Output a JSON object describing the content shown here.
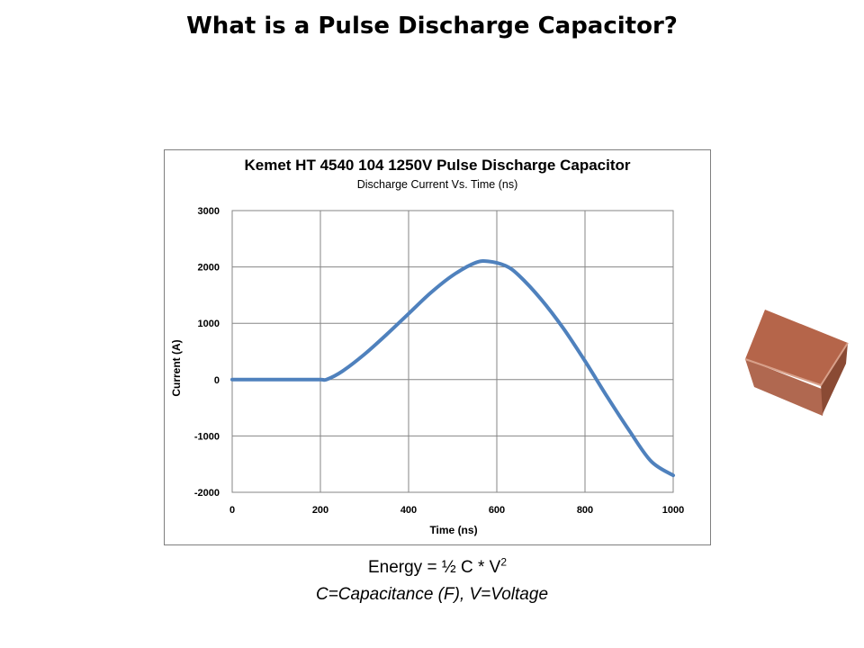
{
  "slide": {
    "title": "What is a Pulse Discharge Capacitor?",
    "formula_prefix": "Energy = ½ C * V",
    "formula_exponent": "2",
    "definitions": "C=Capacitance (F), V=Voltage"
  },
  "photo": {
    "icon": "capacitor-chip",
    "colors": {
      "top": "#b5654a",
      "front": "#b06850",
      "side": "#8a4a34"
    }
  },
  "chart_data": {
    "type": "line",
    "title": "Kemet HT 4540 104 1250V Pulse Discharge Capacitor",
    "subtitle": "Discharge Current Vs. Time (ns)",
    "xlabel": "Time (ns)",
    "ylabel": "Current (A)",
    "xlim": [
      0,
      1000
    ],
    "ylim": [
      -2000,
      3000
    ],
    "x_ticks": [
      0,
      200,
      400,
      600,
      800,
      1000
    ],
    "y_ticks": [
      3000,
      2000,
      1000,
      0,
      -1000,
      -2000
    ],
    "x_tick_labels": [
      "0",
      "200",
      "400",
      "600",
      "800",
      "1000"
    ],
    "y_tick_labels": [
      "3000",
      "2000",
      "1000",
      "0",
      "-1000",
      "-2000"
    ],
    "grid": true,
    "legend": "none",
    "series": [
      {
        "color": "#4f81bd",
        "x": [
          0,
          50,
          100,
          150,
          200,
          215,
          250,
          300,
          350,
          400,
          450,
          500,
          550,
          580,
          620,
          650,
          700,
          750,
          800,
          850,
          900,
          950,
          1000
        ],
        "y": [
          0,
          0,
          0,
          0,
          0,
          5,
          150,
          450,
          800,
          1170,
          1540,
          1850,
          2070,
          2100,
          2020,
          1850,
          1430,
          920,
          330,
          -300,
          -900,
          -1450,
          -1700
        ]
      }
    ]
  }
}
